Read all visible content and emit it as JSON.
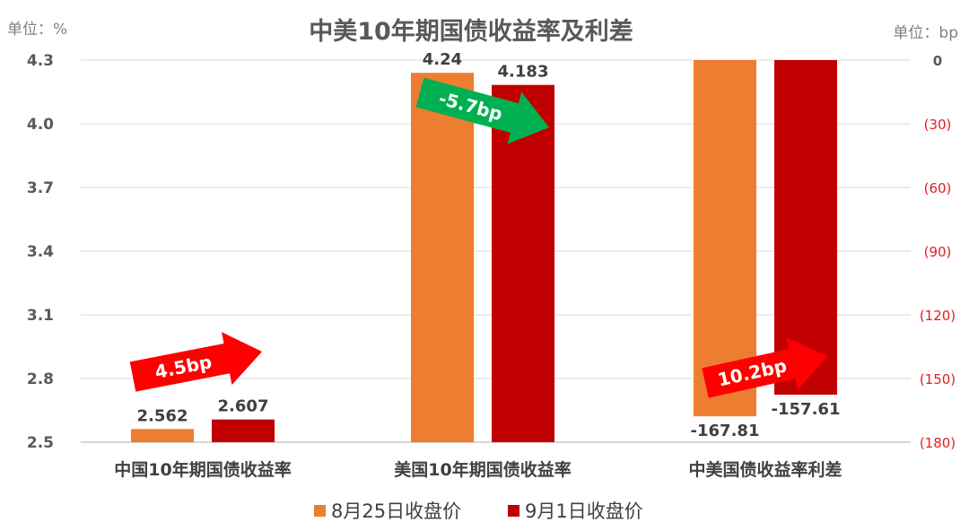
{
  "chart_data": {
    "type": "bar",
    "title": "中美10年期国债收益率及利差",
    "left_unit": "单位：%",
    "right_unit": "单位：bp",
    "categories": [
      "中国10年期国债收益率",
      "美国10年期国债收益率",
      "中美国债收益率利差"
    ],
    "left_axis": {
      "min": 2.5,
      "max": 4.3,
      "ticks": [
        "4.3",
        "4.0",
        "3.7",
        "3.4",
        "3.1",
        "2.8",
        "2.5"
      ]
    },
    "right_axis": {
      "min": -180,
      "max": 0,
      "ticks": [
        "0",
        "(30)",
        "(60)",
        "(90)",
        "(120)",
        "(150)",
        "(180)"
      ]
    },
    "series": [
      {
        "name": "8月25日收盘价",
        "color": "#ED7D31",
        "values": [
          2.562,
          4.24,
          -167.81
        ],
        "labels": [
          "2.562",
          "4.24",
          "-167.81"
        ]
      },
      {
        "name": "9月1日收盘价",
        "color": "#C00000",
        "values": [
          2.607,
          4.183,
          -157.61
        ],
        "labels": [
          "2.607",
          "4.183",
          "-157.61"
        ]
      }
    ],
    "annotations": [
      {
        "text": "4.5bp",
        "color": "#FF0000",
        "category": 0
      },
      {
        "text": "-5.7bp",
        "color": "#00B050",
        "category": 1
      },
      {
        "text": "10.2bp",
        "color": "#FF0000",
        "category": 2
      }
    ],
    "legend_placement": "bottom",
    "grid": true
  }
}
